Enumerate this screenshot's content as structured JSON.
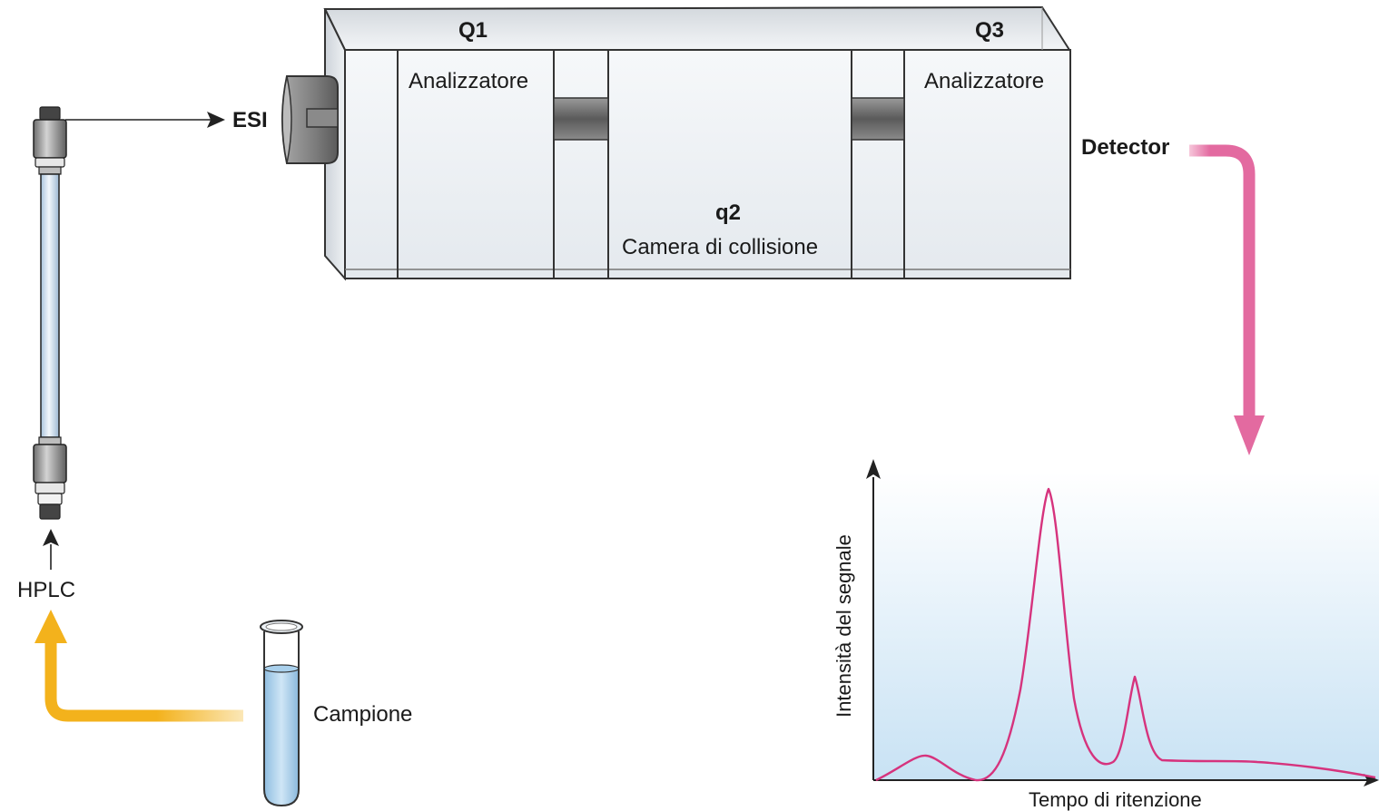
{
  "ms": {
    "q1": "Q1",
    "q3": "Q3",
    "q1_label": "Analizzatore",
    "q3_label": "Analizzatore",
    "q2": "q2",
    "q2_label": "Camera di collisione",
    "esi": "ESI",
    "detector": "Detector"
  },
  "lc": {
    "hplc": "HPLC",
    "sample": "Campione"
  },
  "chromatogram": {
    "ylabel": "Intensità del segnale",
    "xlabel": "Tempo di ritenzione",
    "line_color": "#d6337d"
  },
  "colors": {
    "detector_arrow": "#e36aa0",
    "sample_arrow": "#f3b21c",
    "chart_bg_top": "#ffffff",
    "chart_bg_bottom": "#c8e2f4"
  }
}
